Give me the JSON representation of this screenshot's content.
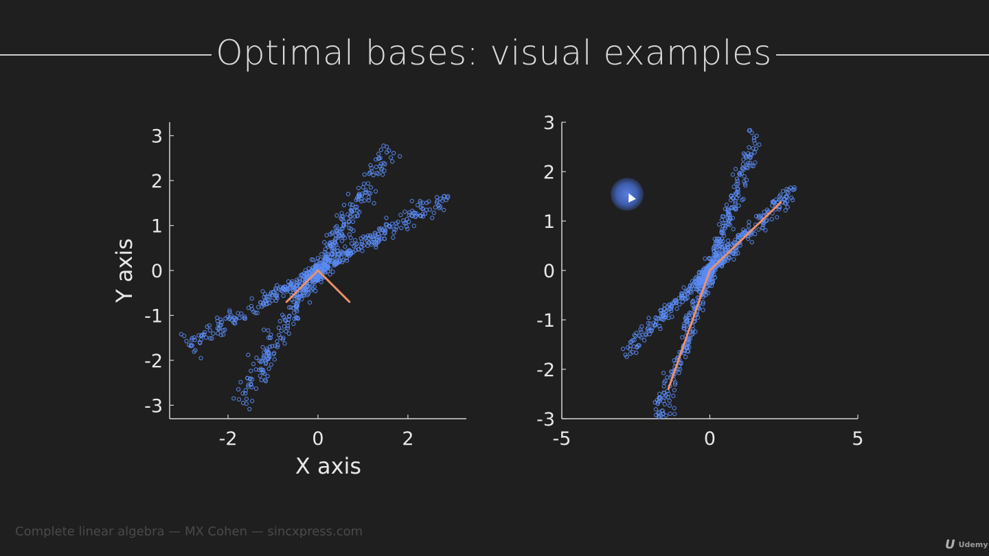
{
  "slide": {
    "title": "Optimal bases: visual examples",
    "footer": "Complete linear algebra — MX Cohen — sincxpress.com",
    "brand_mark": "U",
    "brand_name": "Udemy"
  },
  "colors": {
    "background": "#1f1f1f",
    "points": "#5b8cf5",
    "basis_lines": "#f0906a",
    "axes": "#d8d8d8"
  },
  "chart_data": [
    {
      "type": "scatter",
      "title": "",
      "xlabel": "X axis",
      "ylabel": "Y axis",
      "xlim": [
        -3.3,
        3.3
      ],
      "ylim": [
        -3.3,
        3.3
      ],
      "xticks": [
        -2,
        0,
        2
      ],
      "yticks": [
        -3,
        -2,
        -1,
        0,
        1,
        2,
        3
      ],
      "xtick_labels": [
        "-2",
        "0",
        "2"
      ],
      "ytick_labels": [
        "-3",
        "-2",
        "-1",
        "0",
        "1",
        "2",
        "3"
      ],
      "series": [
        {
          "marker": "open-circle",
          "clusters": [
            {
              "direction": [
                1.0,
                0.58
              ],
              "t_range": [
                -2.9,
                2.9
              ],
              "spread": 0.09,
              "n": 420
            },
            {
              "direction": [
                1.0,
                1.7
              ],
              "t_range": [
                -1.75,
                1.6
              ],
              "spread": 0.08,
              "n": 420
            }
          ]
        }
      ],
      "basis_vectors": [
        {
          "from": [
            0,
            0
          ],
          "to": [
            -0.7,
            -0.7
          ]
        },
        {
          "from": [
            0,
            0
          ],
          "to": [
            0.7,
            -0.7
          ]
        }
      ],
      "grid": false
    },
    {
      "type": "scatter",
      "title": "",
      "xlabel": "",
      "ylabel": "",
      "xlim": [
        -5,
        5
      ],
      "ylim": [
        -3,
        3
      ],
      "xticks": [
        -5,
        0,
        5
      ],
      "yticks": [
        -3,
        -2,
        -1,
        0,
        1,
        2,
        3
      ],
      "xtick_labels": [
        "-5",
        "0",
        "5"
      ],
      "ytick_labels": [
        "-3",
        "-2",
        "-1",
        "0",
        "1",
        "2",
        "3"
      ],
      "series": [
        {
          "marker": "open-circle",
          "clusters": [
            {
              "direction": [
                1.0,
                0.58
              ],
              "t_range": [
                -2.9,
                2.9
              ],
              "spread": 0.09,
              "n": 420
            },
            {
              "direction": [
                1.0,
                1.7
              ],
              "t_range": [
                -1.75,
                1.6
              ],
              "spread": 0.08,
              "n": 420
            }
          ]
        }
      ],
      "basis_vectors": [
        {
          "from": [
            0,
            0
          ],
          "to": [
            2.4,
            1.38
          ]
        },
        {
          "from": [
            0,
            0
          ],
          "to": [
            -1.4,
            -2.4
          ]
        }
      ],
      "grid": false
    }
  ]
}
